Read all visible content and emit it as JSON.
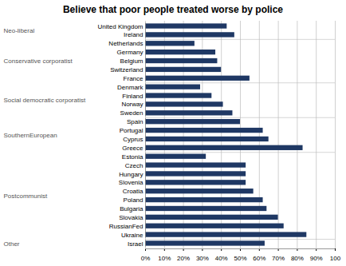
{
  "chart_data": {
    "type": "bar",
    "orientation": "horizontal",
    "title": "Believe that poor people treated worse by police",
    "color": "#1f3864",
    "categories": [
      "United Kingdom",
      "Ireland",
      "Netherlands",
      "Germany",
      "Belgium",
      "Switzerland",
      "France",
      "Denmark",
      "Finland",
      "Norway",
      "Sweden",
      "Spain",
      "Portugal",
      "Cyprus",
      "Greece",
      "Estonia",
      "Czech",
      "Hungary",
      "Slovenia",
      "Croatia",
      "Poland",
      "Bulgaria",
      "Slovakia",
      "RussianFed",
      "Ukraine",
      "Israel"
    ],
    "values": [
      43,
      47,
      26,
      37,
      38,
      40,
      55,
      29,
      35,
      41,
      46,
      50,
      62,
      65,
      83,
      32,
      53,
      53,
      53,
      57,
      62,
      64,
      70,
      73,
      85,
      63
    ],
    "groups": [
      {
        "label": "Neo-liberal",
        "categories": [
          "United Kingdom",
          "Ireland"
        ]
      },
      {
        "label": "Conservative corporatist",
        "categories": [
          "Netherlands",
          "Germany",
          "Belgium",
          "Switzerland",
          "France"
        ]
      },
      {
        "label": "Social democratic corporatist",
        "categories": [
          "Denmark",
          "Finland",
          "Norway",
          "Sweden"
        ]
      },
      {
        "label": "SouthernEuropean",
        "categories": [
          "Spain",
          "Portugal",
          "Cyprus",
          "Greece"
        ]
      },
      {
        "label": "Postcommunist",
        "categories": [
          "Estonia",
          "Czech",
          "Hungary",
          "Slovenia",
          "Croatia",
          "Poland",
          "Bulgaria",
          "Slovakia",
          "RussianFed",
          "Ukraine"
        ]
      },
      {
        "label": "Other",
        "categories": [
          "Israel"
        ]
      }
    ],
    "xlim": [
      0,
      100
    ],
    "xticks": [
      {
        "value": 0,
        "label": "0%"
      },
      {
        "value": 10,
        "label": "10%"
      },
      {
        "value": 20,
        "label": "20%"
      },
      {
        "value": 30,
        "label": "30%"
      },
      {
        "value": 40,
        "label": "40%"
      },
      {
        "value": 50,
        "label": "50%"
      },
      {
        "value": 60,
        "label": "60%"
      },
      {
        "value": 70,
        "label": "70%"
      },
      {
        "value": 80,
        "label": "80%"
      },
      {
        "value": 90,
        "label": "90%"
      },
      100
    ],
    "grid": true
  }
}
